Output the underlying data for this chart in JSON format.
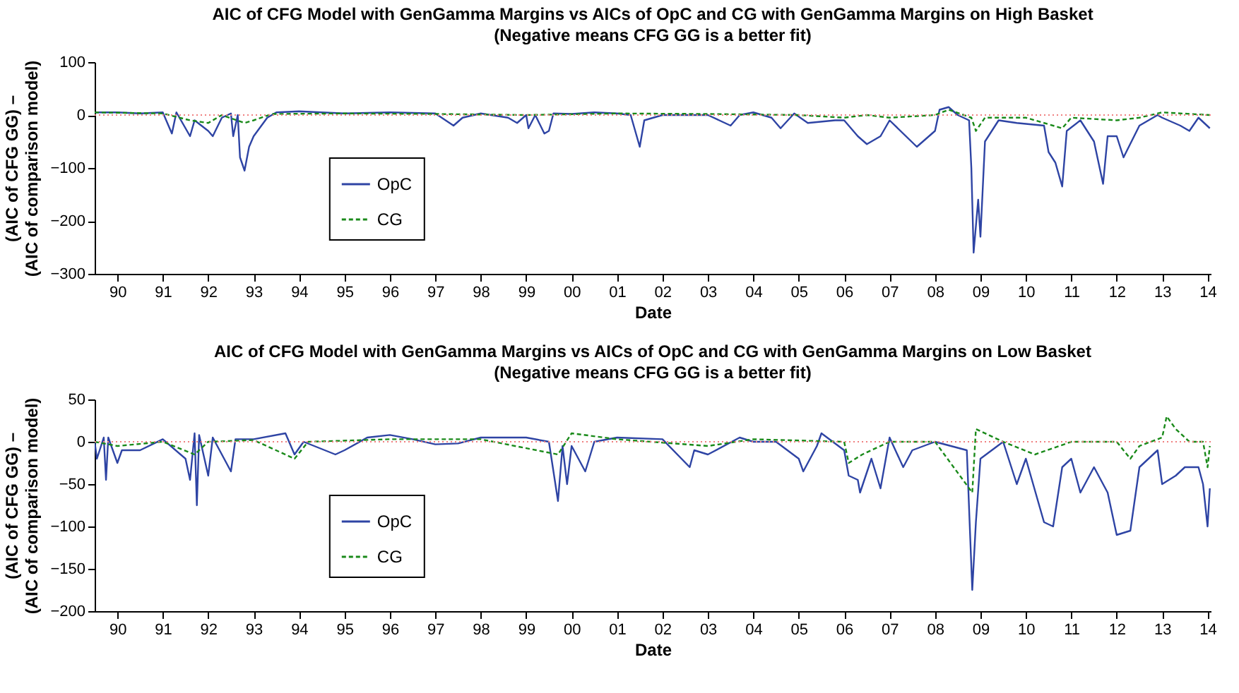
{
  "chart_data": [
    {
      "type": "line",
      "title": "AIC of CFG Model with GenGamma Margins vs AICs of OpC and CG with GenGamma Margins on High Basket",
      "subtitle": "(Negative means CFG GG is a better fit)",
      "xlabel": "Date",
      "ylabel": "(AIC of CFG GG) –\n(AIC of comparison model)",
      "xlim": [
        1989.5,
        2014.07
      ],
      "ylim": [
        -300,
        100
      ],
      "yticks": [
        -300,
        -200,
        -100,
        0,
        100
      ],
      "xticks": [
        {
          "value": 1990,
          "label": "90"
        },
        {
          "value": 1991,
          "label": "91"
        },
        {
          "value": 1992,
          "label": "92"
        },
        {
          "value": 1993,
          "label": "93"
        },
        {
          "value": 1994,
          "label": "94"
        },
        {
          "value": 1995,
          "label": "95"
        },
        {
          "value": 1996,
          "label": "96"
        },
        {
          "value": 1997,
          "label": "97"
        },
        {
          "value": 1998,
          "label": "98"
        },
        {
          "value": 1999,
          "label": "99"
        },
        {
          "value": 2000,
          "label": "00"
        },
        {
          "value": 2001,
          "label": "01"
        },
        {
          "value": 2002,
          "label": "02"
        },
        {
          "value": 2003,
          "label": "03"
        },
        {
          "value": 2004,
          "label": "04"
        },
        {
          "value": 2005,
          "label": "05"
        },
        {
          "value": 2006,
          "label": "06"
        },
        {
          "value": 2007,
          "label": "07"
        },
        {
          "value": 2008,
          "label": "08"
        },
        {
          "value": 2009,
          "label": "09"
        },
        {
          "value": 2010,
          "label": "10"
        },
        {
          "value": 2011,
          "label": "11"
        },
        {
          "value": 2012,
          "label": "12"
        },
        {
          "value": 2013,
          "label": "13"
        },
        {
          "value": 2014,
          "label": "14"
        }
      ],
      "grid": false,
      "legend": "left",
      "marker": "none",
      "ref_lines": [
        {
          "axis": "y",
          "value": 0,
          "label": null,
          "color": "#f08080",
          "line_style": "dotted"
        }
      ],
      "series": [
        {
          "name": "OpC",
          "color": "#2e44a4",
          "line_style": "solid",
          "x": [
            1989.5,
            1990,
            1990.5,
            1991,
            1991.2,
            1991.3,
            1991.6,
            1991.7,
            1992,
            1992.1,
            1992.3,
            1992.5,
            1992.55,
            1992.65,
            1992.7,
            1992.8,
            1992.9,
            1993.0,
            1993.3,
            1993.5,
            1994,
            1995,
            1996,
            1997,
            1997.4,
            1997.6,
            1998,
            1998.6,
            1998.8,
            1999,
            1999.05,
            1999.2,
            1999.4,
            1999.5,
            1999.6,
            2000,
            2000.5,
            2001,
            2001.3,
            2001.5,
            2001.6,
            2002,
            2003,
            2003.5,
            2003.7,
            2004,
            2004.4,
            2004.6,
            2004.9,
            2005.2,
            2005.8,
            2006,
            2006.3,
            2006.5,
            2006.8,
            2007,
            2007.6,
            2008,
            2008.1,
            2008.3,
            2008.5,
            2008.75,
            2008.8,
            2008.85,
            2008.95,
            2009.0,
            2009.1,
            2009.4,
            2009.8,
            2010.4,
            2010.5,
            2010.65,
            2010.8,
            2010.9,
            2011.2,
            2011.5,
            2011.7,
            2011.8,
            2012,
            2012.15,
            2012.5,
            2012.9,
            2013,
            2013.4,
            2013.6,
            2013.8,
            2014.05
          ],
          "values": [
            5,
            5,
            3,
            5,
            -35,
            5,
            -40,
            -10,
            -30,
            -40,
            -5,
            3,
            -40,
            0,
            -80,
            -105,
            -60,
            -40,
            -5,
            5,
            7,
            3,
            5,
            3,
            -20,
            -5,
            3,
            -5,
            -15,
            0,
            -25,
            0,
            -35,
            -30,
            3,
            2,
            5,
            3,
            0,
            -60,
            -10,
            0,
            0,
            -20,
            0,
            5,
            -5,
            -25,
            3,
            -15,
            -10,
            -10,
            -40,
            -55,
            -40,
            -10,
            -60,
            -30,
            10,
            15,
            0,
            -10,
            -100,
            -260,
            -160,
            -230,
            -50,
            -10,
            -15,
            -20,
            -70,
            -90,
            -135,
            -30,
            -10,
            -50,
            -130,
            -40,
            -40,
            -80,
            -20,
            0,
            -5,
            -20,
            -30,
            -5,
            -25
          ]
        },
        {
          "name": "CG",
          "color": "#1a8a1a",
          "line_style": "dashed",
          "x": [
            1989.5,
            1991,
            1991.6,
            1992,
            1992.3,
            1992.8,
            1993.0,
            1993.4,
            1995,
            1997,
            1999,
            2001,
            2003,
            2005,
            2006,
            2006.5,
            2007,
            2008,
            2008.3,
            2008.8,
            2008.9,
            2009.1,
            2010,
            2010.8,
            2011,
            2012,
            2012.5,
            2013,
            2014.05
          ],
          "values": [
            5,
            3,
            -10,
            -15,
            0,
            -15,
            -10,
            2,
            3,
            2,
            0,
            3,
            2,
            0,
            -5,
            0,
            -5,
            0,
            10,
            -5,
            -30,
            -5,
            -5,
            -25,
            -5,
            -10,
            -5,
            5,
            0
          ]
        }
      ]
    },
    {
      "type": "line",
      "title": "AIC of CFG Model with GenGamma Margins vs AICs of OpC and CG with GenGamma Margins on Low Basket",
      "subtitle": "(Negative means CFG GG is a better fit)",
      "xlabel": "Date",
      "ylabel": "(AIC of CFG GG) –\n(AIC of comparison model)",
      "xlim": [
        1989.5,
        2014.07
      ],
      "ylim": [
        -200,
        50
      ],
      "yticks": [
        -200,
        -150,
        -100,
        -50,
        0,
        50
      ],
      "xticks": [
        {
          "value": 1990,
          "label": "90"
        },
        {
          "value": 1991,
          "label": "91"
        },
        {
          "value": 1992,
          "label": "92"
        },
        {
          "value": 1993,
          "label": "93"
        },
        {
          "value": 1994,
          "label": "94"
        },
        {
          "value": 1995,
          "label": "95"
        },
        {
          "value": 1996,
          "label": "96"
        },
        {
          "value": 1997,
          "label": "97"
        },
        {
          "value": 1998,
          "label": "98"
        },
        {
          "value": 1999,
          "label": "99"
        },
        {
          "value": 2000,
          "label": "00"
        },
        {
          "value": 2001,
          "label": "01"
        },
        {
          "value": 2002,
          "label": "02"
        },
        {
          "value": 2003,
          "label": "03"
        },
        {
          "value": 2004,
          "label": "04"
        },
        {
          "value": 2005,
          "label": "05"
        },
        {
          "value": 2006,
          "label": "06"
        },
        {
          "value": 2007,
          "label": "07"
        },
        {
          "value": 2008,
          "label": "08"
        },
        {
          "value": 2009,
          "label": "09"
        },
        {
          "value": 2010,
          "label": "10"
        },
        {
          "value": 2011,
          "label": "11"
        },
        {
          "value": 2012,
          "label": "12"
        },
        {
          "value": 2013,
          "label": "13"
        },
        {
          "value": 2014,
          "label": "14"
        }
      ],
      "grid": false,
      "legend": "left",
      "marker": "none",
      "ref_lines": [
        {
          "axis": "y",
          "value": 0,
          "label": null,
          "color": "#f08080",
          "line_style": "dotted"
        }
      ],
      "series": [
        {
          "name": "OpC",
          "color": "#2e44a4",
          "line_style": "solid",
          "x": [
            1989.5,
            1989.55,
            1989.7,
            1989.75,
            1989.8,
            1990.0,
            1990.1,
            1990.5,
            1991,
            1991.5,
            1991.6,
            1991.7,
            1991.75,
            1991.8,
            1992,
            1992.1,
            1992.5,
            1992.6,
            1993,
            1993.7,
            1993.9,
            1994.1,
            1994.8,
            1995,
            1995.5,
            1996,
            1996.5,
            1997,
            1997.5,
            1998,
            1999,
            1999.5,
            1999.7,
            1999.8,
            1999.9,
            2000,
            2000.3,
            2000.5,
            2001,
            2002,
            2002.6,
            2002.7,
            2003,
            2003.7,
            2004,
            2004.5,
            2005,
            2005.1,
            2005.4,
            2005.5,
            2006,
            2006.1,
            2006.3,
            2006.35,
            2006.6,
            2006.8,
            2007,
            2007.3,
            2007.5,
            2008,
            2008.7,
            2008.82,
            2008.9,
            2009.0,
            2009.5,
            2009.8,
            2010,
            2010.4,
            2010.6,
            2010.8,
            2011,
            2011.2,
            2011.5,
            2011.8,
            2012,
            2012.3,
            2012.5,
            2012.9,
            2013.0,
            2013.3,
            2013.5,
            2013.8,
            2013.9,
            2014.0,
            2014.05
          ],
          "values": [
            0,
            -20,
            5,
            -45,
            5,
            -25,
            -10,
            -10,
            3,
            -20,
            -45,
            10,
            -75,
            8,
            -40,
            5,
            -35,
            3,
            3,
            10,
            -15,
            0,
            -15,
            -10,
            5,
            8,
            3,
            -3,
            -2,
            5,
            5,
            0,
            -70,
            -5,
            -50,
            -5,
            -35,
            0,
            5,
            3,
            -30,
            -10,
            -15,
            5,
            0,
            0,
            -20,
            -35,
            -5,
            10,
            -10,
            -40,
            -45,
            -60,
            -20,
            -55,
            5,
            -30,
            -10,
            0,
            -10,
            -175,
            -95,
            -20,
            0,
            -50,
            -20,
            -95,
            -100,
            -30,
            -20,
            -60,
            -30,
            -60,
            -110,
            -105,
            -30,
            -10,
            -50,
            -40,
            -30,
            -30,
            -50,
            -100,
            -55
          ]
        },
        {
          "name": "CG",
          "color": "#1a8a1a",
          "line_style": "dashed",
          "x": [
            1989.5,
            1990,
            1991,
            1991.7,
            1992,
            1993,
            1993.9,
            1994.2,
            1996,
            1998,
            1999.7,
            2000,
            2001,
            2003,
            2004,
            2006,
            2006.1,
            2006.4,
            2007,
            2008,
            2008.82,
            2008.9,
            2009.5,
            2010.2,
            2011,
            2012,
            2012.3,
            2012.5,
            2013,
            2013.1,
            2013.3,
            2013.6,
            2013.9,
            2014.0,
            2014.05
          ],
          "values": [
            0,
            -5,
            0,
            -15,
            0,
            2,
            -20,
            0,
            3,
            3,
            -15,
            10,
            3,
            -5,
            3,
            0,
            -25,
            -15,
            0,
            0,
            -60,
            15,
            0,
            -15,
            0,
            0,
            -20,
            -5,
            5,
            30,
            15,
            0,
            0,
            -30,
            -5
          ]
        }
      ]
    }
  ]
}
